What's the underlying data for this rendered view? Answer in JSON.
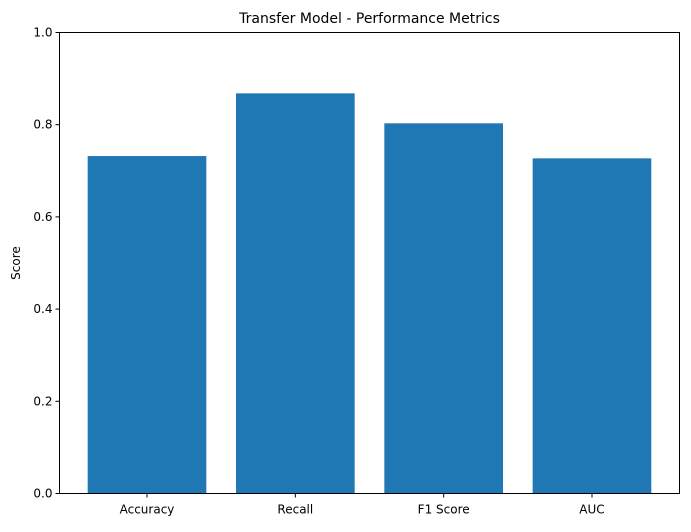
{
  "chart_data": {
    "type": "bar",
    "title": "Transfer Model - Performance Metrics",
    "xlabel": "",
    "ylabel": "Score",
    "categories": [
      "Accuracy",
      "Recall",
      "F1 Score",
      "AUC"
    ],
    "values": [
      0.732,
      0.868,
      0.803,
      0.727
    ],
    "ylim": [
      0,
      1.0
    ],
    "yticks": [
      0.0,
      0.2,
      0.4,
      0.6,
      0.8,
      1.0
    ],
    "ytick_labels": [
      "0.0",
      "0.2",
      "0.4",
      "0.6",
      "0.8",
      "1.0"
    ],
    "bar_color": "#1f77b4",
    "grid": false,
    "legend": "none"
  }
}
